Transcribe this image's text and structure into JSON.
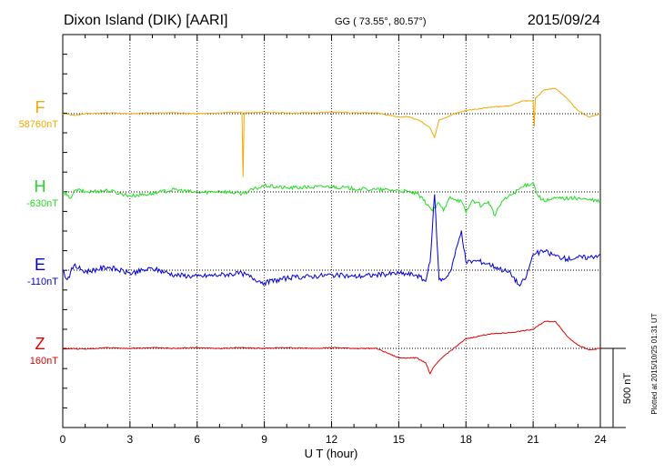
{
  "header": {
    "station": "Dixon Island (DIK)  [AARI]",
    "coords": "GG ( 73.55°,  80.57°)",
    "date": "2015/09/24"
  },
  "plotted_note": "Plotted at 2015/10/25 01:31  UT",
  "scale_label": "500 nT",
  "colors": {
    "F": "#f4a800",
    "H": "#22dd22",
    "E": "#0000dd",
    "Z": "#e00000",
    "axis": "#000000"
  },
  "chart_data": {
    "type": "line",
    "xlabel": "U T (hour)",
    "xlim": [
      0,
      24
    ],
    "x_ticks": [
      "0",
      "3",
      "6",
      "9",
      "12",
      "15",
      "18",
      "21",
      "24"
    ],
    "series": [
      {
        "name": "F",
        "baseline_label": "58760nT",
        "color": "#f4a800",
        "points": [
          [
            0,
            0
          ],
          [
            0.5,
            -10
          ],
          [
            1,
            0
          ],
          [
            2,
            5
          ],
          [
            3,
            0
          ],
          [
            4,
            5
          ],
          [
            5,
            5
          ],
          [
            6,
            0
          ],
          [
            7,
            5
          ],
          [
            8,
            10
          ],
          [
            8.05,
            -400
          ],
          [
            8.1,
            5
          ],
          [
            9,
            10
          ],
          [
            10,
            5
          ],
          [
            11,
            5
          ],
          [
            12,
            10
          ],
          [
            13,
            5
          ],
          [
            14,
            5
          ],
          [
            15,
            -20
          ],
          [
            15.5,
            -20
          ],
          [
            16,
            -50
          ],
          [
            16.4,
            -90
          ],
          [
            16.6,
            -150
          ],
          [
            16.8,
            -40
          ],
          [
            17,
            -30
          ],
          [
            17.5,
            0
          ],
          [
            18,
            20
          ],
          [
            19,
            40
          ],
          [
            20,
            50
          ],
          [
            20.5,
            80
          ],
          [
            21,
            80
          ],
          [
            21.05,
            -80
          ],
          [
            21.1,
            100
          ],
          [
            21.5,
            150
          ],
          [
            22,
            160
          ],
          [
            22.5,
            100
          ],
          [
            23,
            20
          ],
          [
            23.5,
            -20
          ],
          [
            24,
            0
          ]
        ]
      },
      {
        "name": "H",
        "baseline_label": "-630nT",
        "color": "#22dd22",
        "points": [
          [
            0,
            0
          ],
          [
            0.3,
            -40
          ],
          [
            0.6,
            15
          ],
          [
            1,
            0
          ],
          [
            2,
            10
          ],
          [
            3,
            -25
          ],
          [
            4,
            -10
          ],
          [
            5,
            15
          ],
          [
            6,
            -5
          ],
          [
            7,
            5
          ],
          [
            8,
            -10
          ],
          [
            9,
            40
          ],
          [
            10,
            25
          ],
          [
            11,
            30
          ],
          [
            12,
            35
          ],
          [
            13,
            20
          ],
          [
            14,
            15
          ],
          [
            15,
            10
          ],
          [
            15.8,
            -10
          ],
          [
            16.3,
            -80
          ],
          [
            16.5,
            -120
          ],
          [
            16.8,
            -70
          ],
          [
            17,
            -120
          ],
          [
            17.3,
            -30
          ],
          [
            17.8,
            -60
          ],
          [
            18,
            -130
          ],
          [
            18.3,
            -50
          ],
          [
            18.7,
            -90
          ],
          [
            19,
            -60
          ],
          [
            19.3,
            -150
          ],
          [
            19.6,
            -60
          ],
          [
            20,
            -20
          ],
          [
            20.5,
            30
          ],
          [
            21,
            60
          ],
          [
            21.2,
            -20
          ],
          [
            21.5,
            -60
          ],
          [
            22,
            -40
          ],
          [
            23,
            -40
          ],
          [
            23.5,
            -50
          ],
          [
            24,
            -60
          ]
        ]
      },
      {
        "name": "E",
        "baseline_label": "-110nT",
        "color": "#0000dd",
        "points": [
          [
            0,
            0
          ],
          [
            0.2,
            -60
          ],
          [
            0.5,
            30
          ],
          [
            1,
            -10
          ],
          [
            2,
            20
          ],
          [
            3,
            -20
          ],
          [
            4,
            10
          ],
          [
            5,
            -30
          ],
          [
            6,
            -40
          ],
          [
            7,
            -30
          ],
          [
            8,
            -20
          ],
          [
            9,
            -80
          ],
          [
            10,
            -50
          ],
          [
            11,
            -40
          ],
          [
            12,
            -30
          ],
          [
            13,
            -40
          ],
          [
            14,
            -30
          ],
          [
            15,
            -20
          ],
          [
            15.8,
            -30
          ],
          [
            16.2,
            -70
          ],
          [
            16.4,
            50
          ],
          [
            16.6,
            480
          ],
          [
            16.8,
            -60
          ],
          [
            17,
            -60
          ],
          [
            17.3,
            -10
          ],
          [
            17.8,
            250
          ],
          [
            18,
            50
          ],
          [
            18.5,
            60
          ],
          [
            19,
            40
          ],
          [
            19.5,
            10
          ],
          [
            20,
            -20
          ],
          [
            20.4,
            -100
          ],
          [
            20.7,
            -40
          ],
          [
            21,
            100
          ],
          [
            21.5,
            120
          ],
          [
            22,
            90
          ],
          [
            22.5,
            70
          ],
          [
            23,
            80
          ],
          [
            23.5,
            80
          ],
          [
            24,
            100
          ]
        ]
      },
      {
        "name": "Z",
        "baseline_label": "160nT",
        "color": "#e00000",
        "points": [
          [
            0,
            0
          ],
          [
            1,
            -5
          ],
          [
            2,
            5
          ],
          [
            3,
            0
          ],
          [
            4,
            5
          ],
          [
            5,
            0
          ],
          [
            6,
            5
          ],
          [
            7,
            0
          ],
          [
            8,
            5
          ],
          [
            9,
            0
          ],
          [
            10,
            5
          ],
          [
            11,
            0
          ],
          [
            12,
            5
          ],
          [
            13,
            0
          ],
          [
            14,
            0
          ],
          [
            15,
            -60
          ],
          [
            15.8,
            -60
          ],
          [
            16.2,
            -90
          ],
          [
            16.4,
            -160
          ],
          [
            16.6,
            -110
          ],
          [
            17,
            -50
          ],
          [
            18,
            60
          ],
          [
            19,
            90
          ],
          [
            20,
            100
          ],
          [
            20.5,
            110
          ],
          [
            21,
            120
          ],
          [
            21.5,
            170
          ],
          [
            22,
            170
          ],
          [
            22.5,
            80
          ],
          [
            23,
            20
          ],
          [
            23.5,
            -10
          ],
          [
            24,
            0
          ]
        ]
      }
    ]
  }
}
